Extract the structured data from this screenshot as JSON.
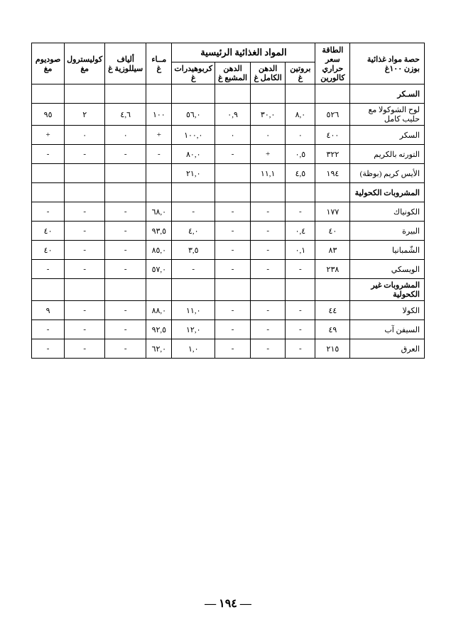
{
  "page_number": "١٩٤",
  "headers": {
    "main_group": "المواد الغذائية الرئيسية",
    "name": "حصة مواد غذائية بوزن ١٠٠غ",
    "calories": "الطاقة سعر حراري كالورين",
    "protein": "بروتين غ",
    "fat_all": "الدهن الكامل غ",
    "fat_sat": "الدهن المشبع غ",
    "carbs": "كربوهيدرات غ",
    "water": "مــاء غ",
    "fiber": "ألياف سيللوزية غ",
    "chol": "كوليسترول مغ",
    "sodium": "صوديوم مغ"
  },
  "sections": [
    {
      "title": "السـكر",
      "rows": [
        {
          "name": "لوح الشوكولا مع حليب كامل",
          "cal": "٥٢٦",
          "prot": "٨,٠",
          "fatall": "٣٠,٠",
          "fatsat": "٠,٩",
          "carb": "٥٦,٠",
          "water": "١٠٠",
          "fiber": "٤,٦",
          "chol": "٢",
          "sod": "٩٥"
        },
        {
          "name": "السكر",
          "cal": "٤٠٠",
          "prot": "٠",
          "fatall": "٠",
          "fatsat": "٠",
          "carb": "١٠٠,٠",
          "water": "+",
          "fiber": "٠",
          "chol": "٠",
          "sod": "+"
        },
        {
          "name": "التورته بالكريم",
          "cal": "٣٢٢",
          "prot": "٠,٥",
          "fatall": "+",
          "fatsat": "-",
          "carb": "٨٠,٠",
          "water": "-",
          "fiber": "-",
          "chol": "-",
          "sod": "-"
        },
        {
          "name": "الأيس كريم (بوظة)",
          "cal": "١٩٤",
          "prot": "٤,٥",
          "fatall": "١١,١",
          "fatsat": "",
          "carb": "٢١,٠",
          "water": "",
          "fiber": "",
          "chol": "",
          "sod": ""
        }
      ]
    },
    {
      "title": "المشروبات الكحولية",
      "rows": [
        {
          "name": "الكونياك",
          "cal": "١٧٧",
          "prot": "-",
          "fatall": "-",
          "fatsat": "-",
          "carb": "-",
          "water": "٦٨,٠",
          "fiber": "-",
          "chol": "-",
          "sod": "-"
        },
        {
          "name": "البيرة",
          "cal": "٤٠",
          "prot": "٠,٤",
          "fatall": "-",
          "fatsat": "-",
          "carb": "٤,٠",
          "water": "٩٣,٥",
          "fiber": "-",
          "chol": "-",
          "sod": "٤٠"
        },
        {
          "name": "الشّمبانيا",
          "cal": "٨٣",
          "prot": "٠,١",
          "fatall": "-",
          "fatsat": "-",
          "carb": "٣,٥",
          "water": "٨٥,٠",
          "fiber": "-",
          "chol": "-",
          "sod": "٤٠"
        },
        {
          "name": "الويسكي",
          "cal": "٢٣٨",
          "prot": "-",
          "fatall": "-",
          "fatsat": "-",
          "carb": "-",
          "water": "٥٧,٠",
          "fiber": "-",
          "chol": "-",
          "sod": "-"
        }
      ]
    },
    {
      "title": "المشروبات غير الكحولية",
      "rows": [
        {
          "name": "الكولا",
          "cal": "٤٤",
          "prot": "-",
          "fatall": "-",
          "fatsat": "-",
          "carb": "١١,٠",
          "water": "٨٨,٠",
          "fiber": "-",
          "chol": "-",
          "sod": "٩"
        },
        {
          "name": "السيفن آب",
          "cal": "٤٩",
          "prot": "-",
          "fatall": "-",
          "fatsat": "-",
          "carb": "١٢,٠",
          "water": "٩٢,٥",
          "fiber": "-",
          "chol": "-",
          "sod": "-"
        },
        {
          "name": "العرق",
          "cal": "٢١٥",
          "prot": "-",
          "fatall": "-",
          "fatsat": "-",
          "carb": "١,٠",
          "water": "٦٢,٠",
          "fiber": "-",
          "chol": "-",
          "sod": "-"
        }
      ]
    }
  ]
}
